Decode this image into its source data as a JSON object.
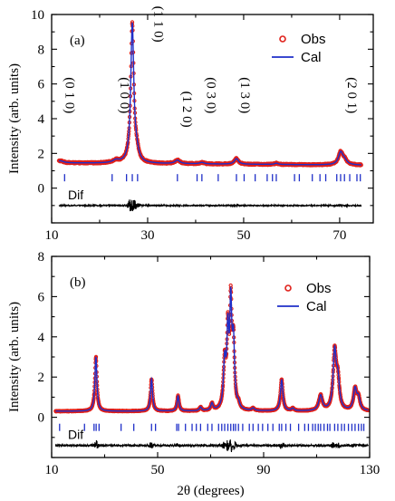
{
  "x_axis_label": "2θ (degrees)",
  "colors": {
    "obs": "#e0201a",
    "cal": "#1f2fc8",
    "bragg": "#1f2fc8",
    "dif": "#000000",
    "frame": "#000000"
  },
  "chart_data": [
    {
      "type": "line",
      "panel_label": "(a)",
      "ylabel": "Intensity (arb. units)",
      "xlim": [
        10,
        77
      ],
      "ylim": [
        -2,
        10
      ],
      "xticks": [
        10,
        30,
        50,
        70
      ],
      "xtick_labels": [
        "10",
        "30",
        "50",
        "70"
      ],
      "yticks": [
        0,
        2,
        4,
        6,
        8,
        10
      ],
      "ytick_labels": [
        "0",
        "2",
        "4",
        "6",
        "8",
        "10"
      ],
      "baseline": 1.45,
      "background_slope": -0.002,
      "noise": 0.035,
      "x_range": [
        11.5,
        74.5
      ],
      "peaks": [
        {
          "x": 11.8,
          "h": 0.12,
          "w": 0.8
        },
        {
          "x": 23.4,
          "h": 0.15,
          "w": 0.8
        },
        {
          "x": 26.8,
          "h": 8.0,
          "w": 0.38
        },
        {
          "x": 27.7,
          "h": 0.45,
          "w": 0.5
        },
        {
          "x": 36.2,
          "h": 0.2,
          "w": 0.6
        },
        {
          "x": 41.3,
          "h": 0.08,
          "w": 0.6
        },
        {
          "x": 48.5,
          "h": 0.32,
          "w": 0.5
        },
        {
          "x": 56.8,
          "h": 0.07,
          "w": 0.5
        },
        {
          "x": 70.2,
          "h": 0.7,
          "w": 0.55
        },
        {
          "x": 71.0,
          "h": 0.25,
          "w": 0.6
        }
      ],
      "hkl_labels": [
        {
          "text": "(0 1 0)",
          "x": 12.0,
          "y_top": 4.3
        },
        {
          "text": "(1 0 0)",
          "x": 23.4,
          "y_top": 4.3
        },
        {
          "text": "(1 1 0)",
          "x": 30.5,
          "y_top": 8.4
        },
        {
          "text": "(1 2 0)",
          "x": 36.4,
          "y_top": 3.5
        },
        {
          "text": "(0 3 0)",
          "x": 41.4,
          "y_top": 4.3
        },
        {
          "text": "(1 3 0)",
          "x": 48.5,
          "y_top": 4.3
        },
        {
          "text": "(2 0 1)",
          "x": 70.8,
          "y_top": 4.3
        }
      ],
      "bragg_y": 0.6,
      "bragg_positions": [
        12.7,
        22.6,
        25.6,
        26.8,
        27.9,
        36.2,
        40.3,
        41.3,
        44.7,
        48.5,
        50.1,
        52.4,
        54.9,
        56.0,
        56.8,
        60.6,
        61.6,
        64.3,
        65.9,
        67.1,
        69.4,
        70.2,
        71.0,
        72.1,
        73.6,
        74.3
      ],
      "dif_label": "Dif",
      "dif_offset": -1.0,
      "dif_amplitude": 0.035,
      "legend": [
        {
          "label": "Obs",
          "marker": "circle"
        },
        {
          "label": "Cal",
          "marker": "line"
        }
      ]
    },
    {
      "type": "line",
      "panel_label": "(b)",
      "ylabel": "Intensity (arb. units)",
      "xlim": [
        10,
        130
      ],
      "ylim": [
        -2,
        8
      ],
      "xticks": [
        10,
        50,
        90,
        130
      ],
      "xtick_labels": [
        "10",
        "50",
        "90",
        "130"
      ],
      "yticks": [
        0,
        2,
        4,
        6,
        8
      ],
      "ytick_labels": [
        "0",
        "2",
        "4",
        "6",
        "8"
      ],
      "baseline": 0.3,
      "background_slope": 0.0,
      "noise": 0.03,
      "x_range": [
        11.5,
        129.5
      ],
      "peaks": [
        {
          "x": 26.7,
          "h": 2.7,
          "w": 0.45
        },
        {
          "x": 47.7,
          "h": 1.6,
          "w": 0.45
        },
        {
          "x": 57.7,
          "h": 0.75,
          "w": 0.45
        },
        {
          "x": 66.2,
          "h": 0.18,
          "w": 0.5
        },
        {
          "x": 70.5,
          "h": 0.35,
          "w": 0.5
        },
        {
          "x": 75.3,
          "h": 2.3,
          "w": 0.55
        },
        {
          "x": 76.5,
          "h": 3.6,
          "w": 0.45
        },
        {
          "x": 77.6,
          "h": 4.9,
          "w": 0.45
        },
        {
          "x": 78.6,
          "h": 3.2,
          "w": 0.5
        },
        {
          "x": 80.5,
          "h": 0.25,
          "w": 0.5
        },
        {
          "x": 86.0,
          "h": 0.12,
          "w": 0.6
        },
        {
          "x": 96.8,
          "h": 1.55,
          "w": 0.55
        },
        {
          "x": 101.0,
          "h": 0.12,
          "w": 0.6
        },
        {
          "x": 111.5,
          "h": 0.75,
          "w": 0.8
        },
        {
          "x": 116.8,
          "h": 2.85,
          "w": 0.7
        },
        {
          "x": 118.0,
          "h": 1.4,
          "w": 0.7
        },
        {
          "x": 124.5,
          "h": 1.05,
          "w": 0.7
        },
        {
          "x": 125.8,
          "h": 0.6,
          "w": 0.7
        }
      ],
      "hkl_labels": [],
      "bragg_y": -0.5,
      "bragg_positions": [
        13.0,
        22.4,
        26.0,
        26.8,
        27.9,
        36.2,
        41.0,
        47.7,
        49.2,
        57.2,
        57.9,
        60.5,
        63.0,
        64.6,
        66.2,
        68.9,
        70.5,
        73.0,
        74.2,
        75.3,
        76.5,
        77.6,
        78.6,
        79.4,
        80.5,
        82.1,
        84.6,
        86.0,
        88.0,
        89.6,
        91.6,
        93.5,
        95.9,
        96.8,
        98.4,
        100.1,
        103.2,
        105.5,
        106.9,
        108.5,
        109.5,
        110.6,
        111.5,
        112.8,
        114.1,
        115.0,
        116.8,
        118.0,
        119.4,
        120.5,
        122.0,
        123.3,
        124.5,
        125.8,
        126.9,
        127.8
      ],
      "dif_label": "Dif",
      "dif_offset": -1.4,
      "dif_amplitude": 0.04,
      "legend": [
        {
          "label": "Obs",
          "marker": "circle"
        },
        {
          "label": "Cal",
          "marker": "line"
        }
      ]
    }
  ]
}
